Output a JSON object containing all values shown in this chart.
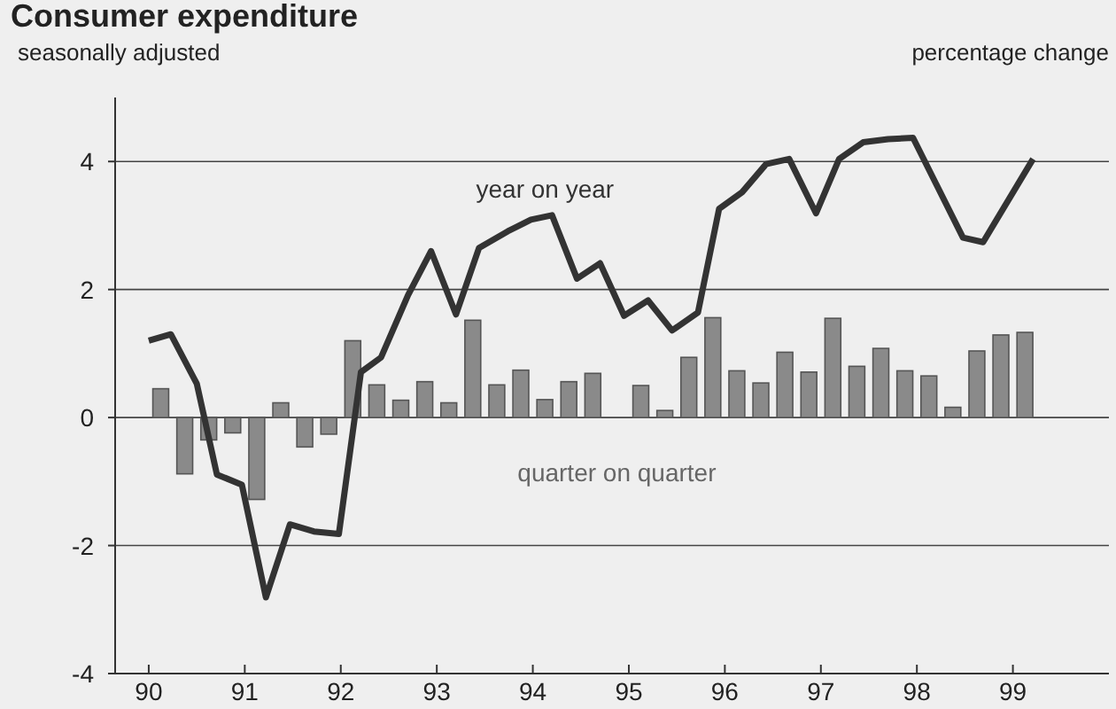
{
  "chart_data": {
    "type": "bar",
    "title": "Consumer expenditure",
    "subtitle": "seasonally adjusted",
    "ylabel": "percentage change",
    "xlim": [
      89.65,
      100
    ],
    "xticks": [
      90,
      91,
      92,
      93,
      94,
      95,
      96,
      97,
      98,
      99
    ],
    "ylim": [
      -4,
      5
    ],
    "yticks": [
      -4,
      -2,
      0,
      2,
      4
    ],
    "grid": "y",
    "series": [
      {
        "name": "quarter on quarter",
        "color": "#8a8a8a",
        "x": [
          90.125,
          90.375,
          90.625,
          90.875,
          91.125,
          91.375,
          91.625,
          91.875,
          92.125,
          92.375,
          92.625,
          92.875,
          93.125,
          93.375,
          93.625,
          93.875,
          94.125,
          94.375,
          94.625,
          94.875,
          95.125,
          95.375,
          95.625,
          95.875,
          96.125,
          96.375,
          96.625,
          96.875,
          97.125,
          97.375,
          97.625,
          97.875,
          98.125,
          98.375,
          98.625,
          98.875,
          99.125
        ],
        "values": [
          0.45,
          -0.88,
          -0.35,
          -0.24,
          -1.28,
          0.23,
          -0.46,
          -0.26,
          1.2,
          0.51,
          0.27,
          0.56,
          0.23,
          1.52,
          0.51,
          0.74,
          0.28,
          0.56,
          0.69,
          null,
          0.5,
          0.11,
          0.94,
          1.56,
          0.73,
          0.54,
          1.02,
          0.71,
          1.55,
          0.8,
          1.08,
          0.73,
          0.65,
          0.16,
          1.04,
          1.29,
          1.33
        ]
      },
      {
        "type": "line",
        "name": "year on year",
        "color": "#333333",
        "x": [
          90.0,
          90.23,
          90.5,
          90.71,
          90.97,
          91.22,
          91.47,
          91.72,
          91.98,
          92.21,
          92.42,
          92.7,
          92.94,
          93.2,
          93.44,
          93.74,
          93.98,
          94.2,
          94.46,
          94.7,
          94.95,
          95.2,
          95.45,
          95.72,
          95.94,
          96.18,
          96.43,
          96.67,
          96.95,
          97.19,
          97.44,
          97.7,
          97.96,
          98.2,
          98.48,
          98.69,
          99.21
        ],
        "values": [
          1.2,
          1.3,
          0.53,
          -0.89,
          -1.05,
          -2.81,
          -1.67,
          -1.78,
          -1.82,
          0.71,
          0.94,
          1.91,
          2.6,
          1.61,
          2.65,
          2.91,
          3.09,
          3.16,
          2.17,
          2.41,
          1.59,
          1.83,
          1.36,
          1.64,
          3.26,
          3.52,
          3.96,
          4.04,
          3.19,
          4.04,
          4.3,
          4.35,
          4.37,
          3.65,
          2.81,
          2.74,
          4.04
        ]
      }
    ]
  }
}
